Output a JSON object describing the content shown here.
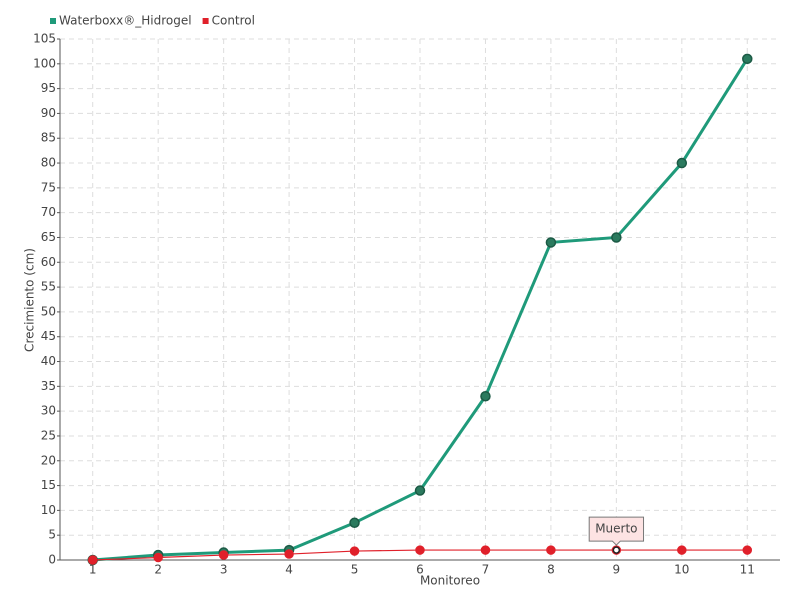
{
  "chart_data": {
    "type": "line",
    "x_label": "Monitoreo",
    "y_label": "Crecimiento (cm)",
    "categories": [
      "1",
      "2",
      "3",
      "4",
      "5",
      "6",
      "7",
      "8",
      "9",
      "10",
      "11"
    ],
    "series": [
      {
        "name": "Waterboxx®_Hidrogel",
        "color": "#1f9a7a",
        "values": [
          0,
          1,
          1.5,
          2,
          7.5,
          14,
          33,
          64,
          65,
          80,
          101
        ]
      },
      {
        "name": "Control",
        "color": "#e0202a",
        "values": [
          0,
          0.5,
          1,
          1.2,
          1.8,
          2,
          2,
          2,
          2,
          2,
          2
        ]
      }
    ],
    "annotations": [
      {
        "text": "Muerto",
        "x": "9",
        "series": "Control"
      }
    ],
    "ylim": [
      0,
      105
    ],
    "yticks": [
      0,
      5,
      10,
      15,
      20,
      25,
      30,
      35,
      40,
      45,
      50,
      55,
      60,
      65,
      70,
      75,
      80,
      85,
      90,
      95,
      100,
      105
    ],
    "grid": true,
    "legend": "top-left"
  }
}
